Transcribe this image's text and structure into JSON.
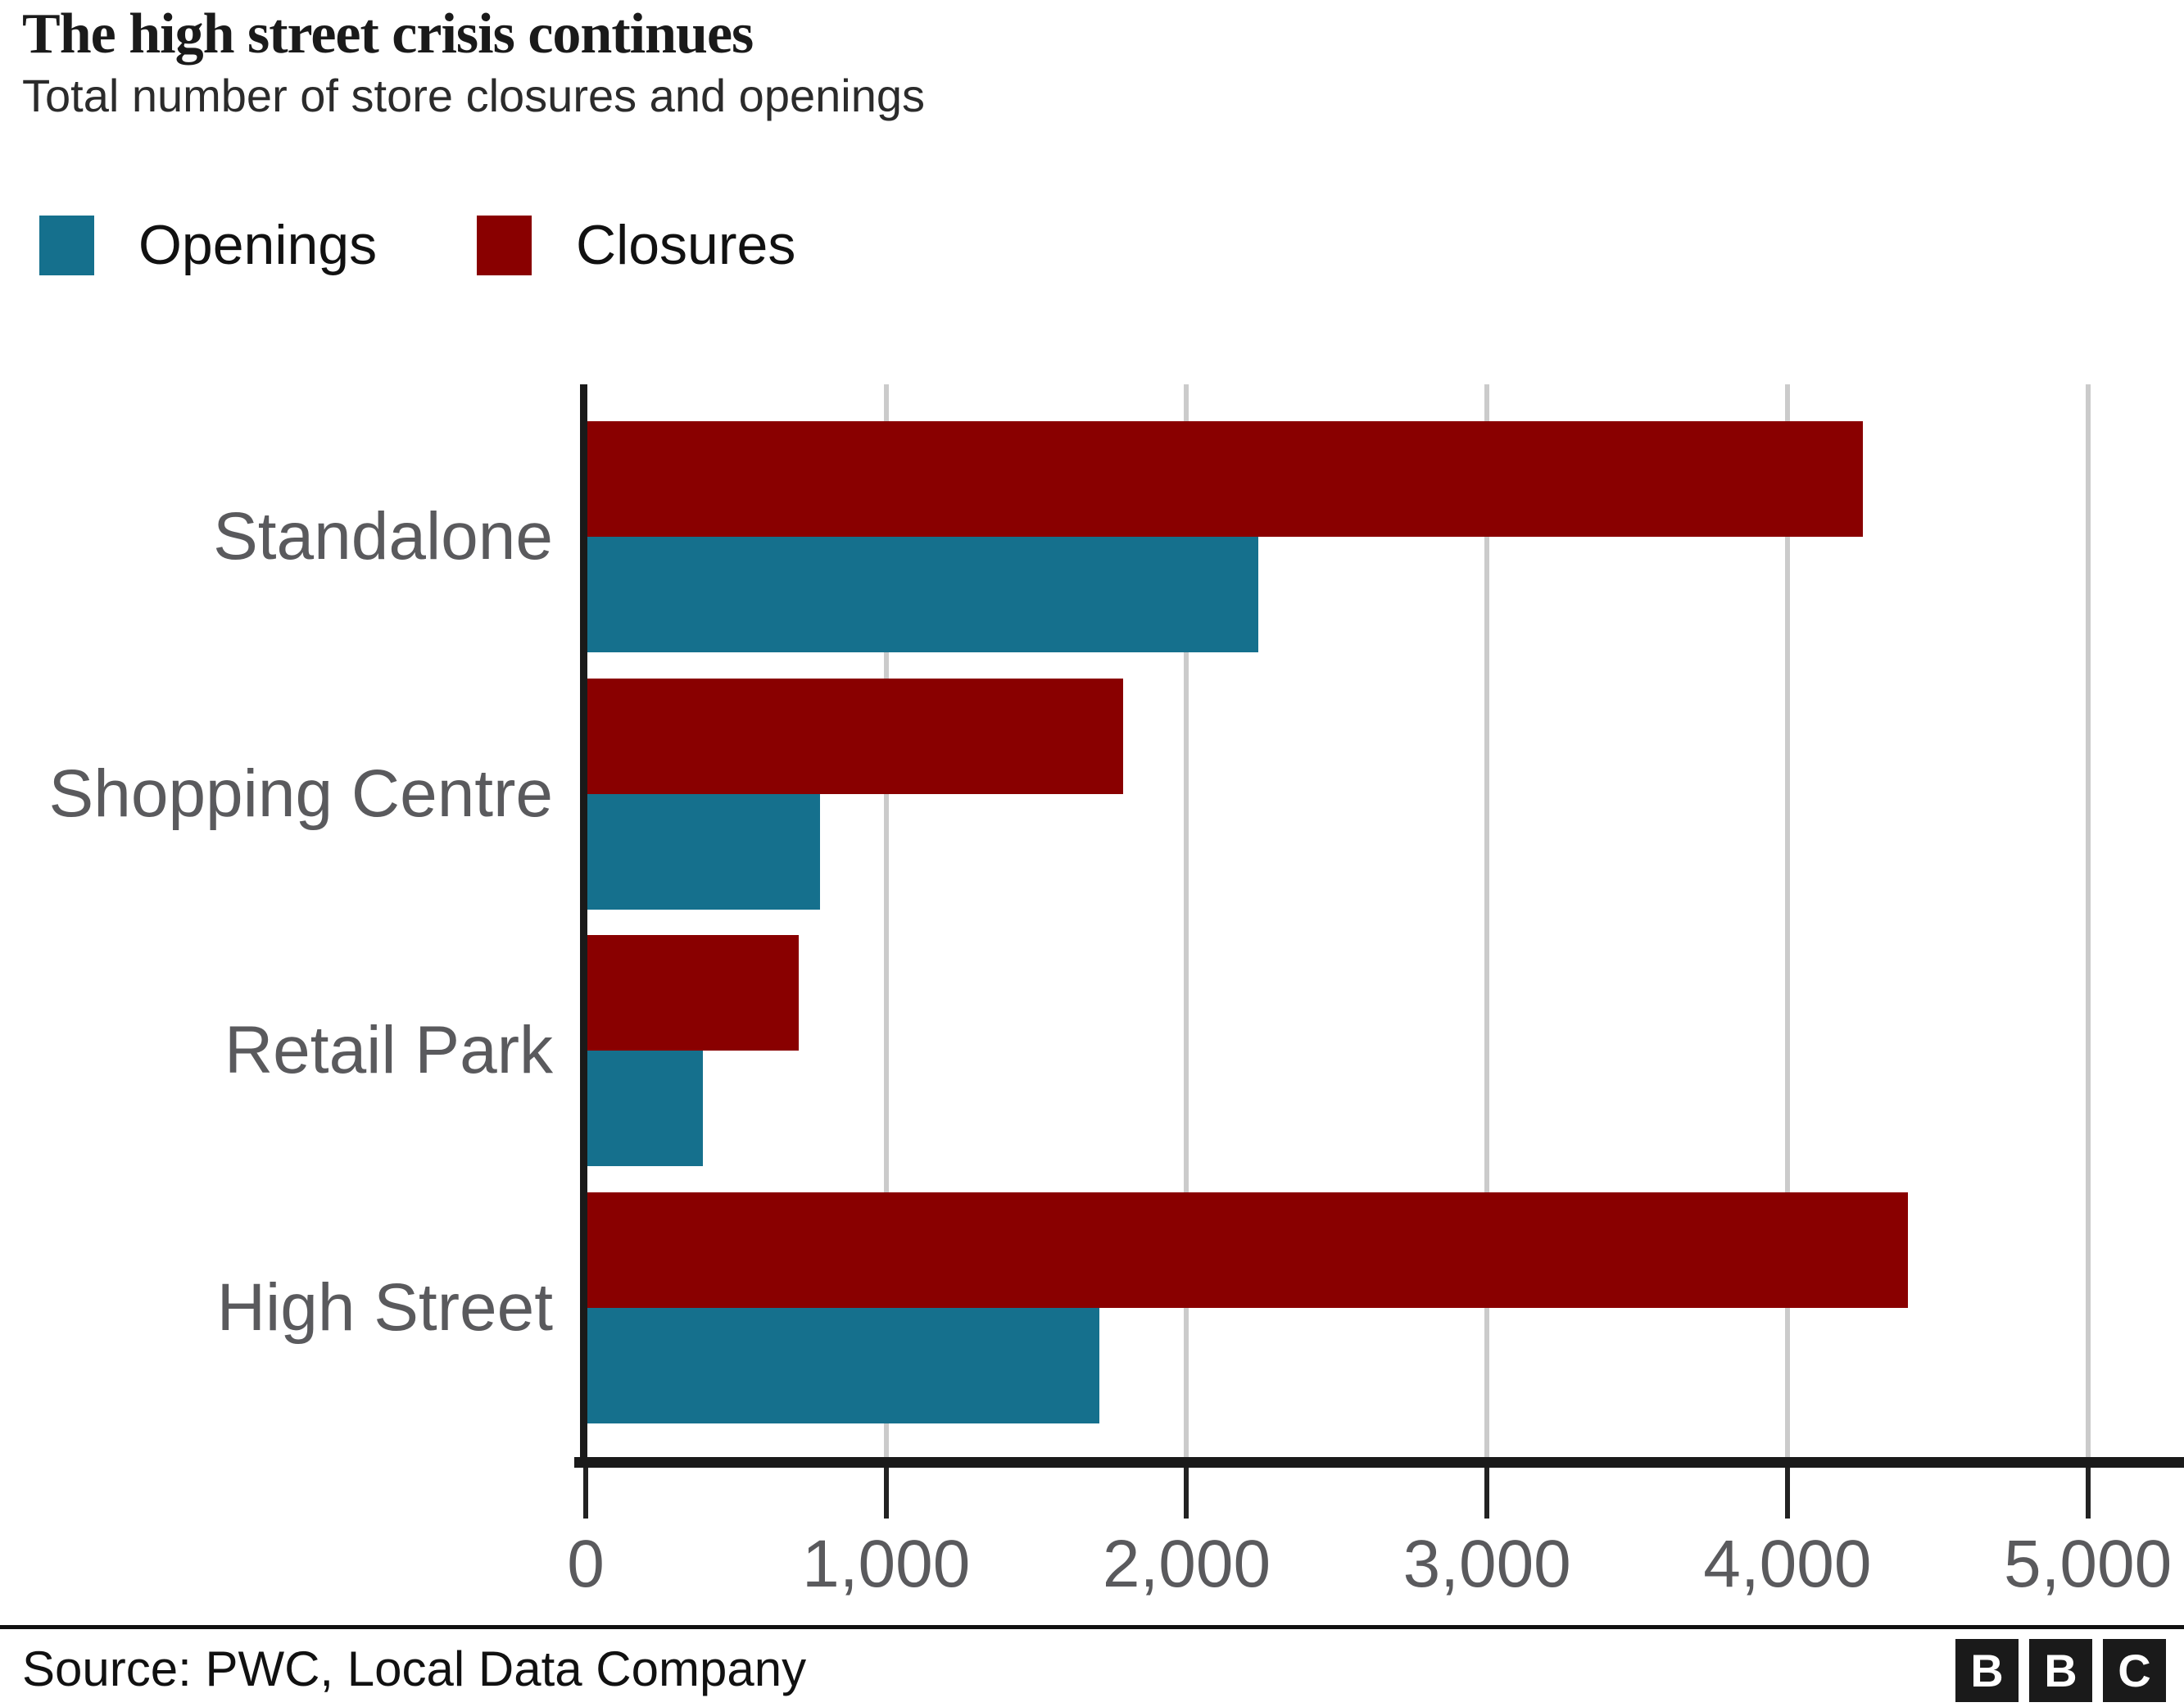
{
  "header": {
    "title": "The high street crisis continues",
    "subtitle": "Total number of store closures and openings"
  },
  "legend": {
    "items": [
      {
        "label": "Openings",
        "color": "#15708d"
      },
      {
        "label": "Closures",
        "color": "#890000"
      }
    ]
  },
  "chart_data": {
    "type": "bar",
    "orientation": "horizontal",
    "title": "The high street crisis continues",
    "subtitle": "Total number of store closures and openings",
    "categories": [
      "Standalone",
      "Shopping Centre",
      "Retail Park",
      "High Street"
    ],
    "series": [
      {
        "name": "Closures",
        "color": "#890000",
        "values": [
          4250,
          1790,
          710,
          4400
        ]
      },
      {
        "name": "Openings",
        "color": "#15708d",
        "values": [
          2240,
          780,
          390,
          1710
        ]
      }
    ],
    "x_ticks": [
      {
        "value": 0,
        "label": "0"
      },
      {
        "value": 1000,
        "label": "1,000"
      },
      {
        "value": 2000,
        "label": "2,000"
      },
      {
        "value": 3000,
        "label": "3,000"
      },
      {
        "value": 4000,
        "label": "4,000"
      },
      {
        "value": 5000,
        "label": "5,000"
      }
    ],
    "xlim": [
      0,
      5320
    ],
    "grid": true,
    "grid_color": "#cbcbcb",
    "axis_color": "#1a1a1a",
    "label_color": "#5a5a5d",
    "legend_position": "top-left"
  },
  "footer": {
    "source": "Source: PWC, Local Data Company",
    "logo_letters": [
      "B",
      "B",
      "C"
    ]
  }
}
